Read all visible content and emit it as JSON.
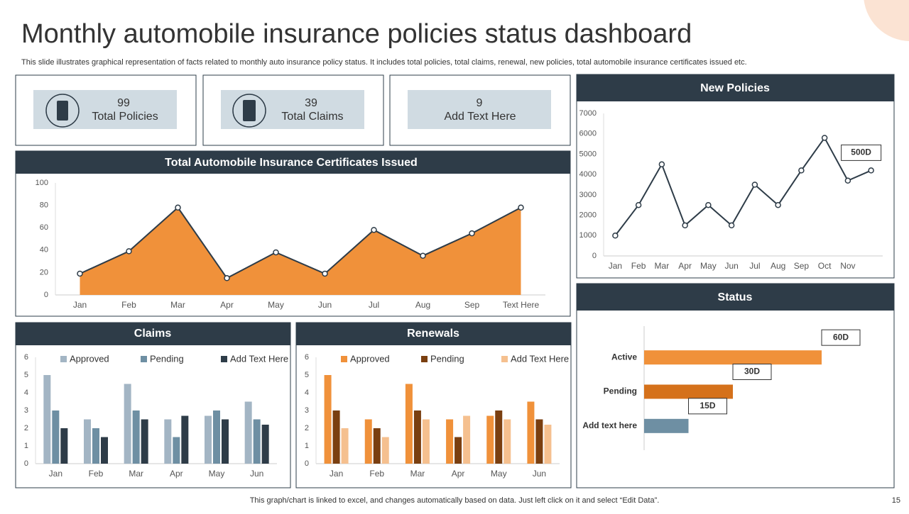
{
  "title": "Monthly automobile insurance policies status dashboard",
  "subtitle": "This slide illustrates graphical representation of facts related to monthly auto insurance policy status. It includes total policies, total claims, renewal, new policies, total automobile insurance certificates issued etc.",
  "kpis": [
    {
      "value": 99,
      "label": "Total Policies"
    },
    {
      "value": 39,
      "label": "Total Claims"
    },
    {
      "value": 9,
      "label": "Add Text Here"
    }
  ],
  "chart_data": [
    {
      "type": "area",
      "title": "Total Automobile Insurance Certificates Issued",
      "categories": [
        "Jan",
        "Feb",
        "Mar",
        "Apr",
        "May",
        "Jun",
        "Jul",
        "Aug",
        "Sep",
        "Text Here"
      ],
      "values": [
        19,
        39,
        78,
        15,
        38,
        19,
        58,
        35,
        55,
        78
      ],
      "color": "#f0913a",
      "line_color": "#2e3c48",
      "ylim": [
        0,
        100
      ],
      "yticks": [
        0,
        20,
        40,
        60,
        80,
        100
      ]
    },
    {
      "type": "line",
      "title": "New Policies",
      "categories": [
        "Jan",
        "Feb",
        "Mar",
        "Apr",
        "May",
        "Jun",
        "Jul",
        "Aug",
        "Sep",
        "Oct",
        "Nov",
        null
      ],
      "values": [
        1000,
        2500,
        4500,
        1500,
        2500,
        1500,
        3500,
        2500,
        4200,
        5800,
        3700,
        4200
      ],
      "color": "#2e3c48",
      "annotation": "500D",
      "ylim": [
        0,
        7000
      ],
      "yticks": [
        0,
        1000,
        2000,
        3000,
        4000,
        5000,
        6000,
        7000
      ]
    },
    {
      "type": "hbar",
      "title": "Status",
      "categories": [
        "Active",
        "Pending",
        "Add text here"
      ],
      "values": [
        60,
        30,
        15
      ],
      "value_labels": [
        "60D",
        "30D",
        "15D"
      ],
      "colors": [
        "#f0913a",
        "#d5711b",
        "#6e8fa3"
      ]
    },
    {
      "type": "grouped_bar",
      "title": "Claims",
      "categories": [
        "Jan",
        "Feb",
        "Mar",
        "Apr",
        "May",
        "Jun"
      ],
      "series": [
        {
          "name": "Approved",
          "color": "#a3b5c4",
          "values": [
            5,
            2.5,
            4.5,
            2.5,
            2.7,
            3.5
          ]
        },
        {
          "name": "Pending",
          "color": "#6e8fa3",
          "values": [
            3,
            2,
            3,
            1.5,
            3,
            2.5
          ]
        },
        {
          "name": "Add Text Here",
          "color": "#2e3c48",
          "values": [
            2,
            1.5,
            2.5,
            2.7,
            2.5,
            2.2
          ]
        }
      ],
      "ylim": [
        0,
        6
      ],
      "yticks": [
        0,
        1,
        2,
        3,
        4,
        5,
        6
      ]
    },
    {
      "type": "grouped_bar",
      "title": "Renewals",
      "categories": [
        "Jan",
        "Feb",
        "Mar",
        "Apr",
        "May",
        "Jun"
      ],
      "series": [
        {
          "name": "Approved",
          "color": "#f0913a",
          "values": [
            5,
            2.5,
            4.5,
            2.5,
            2.7,
            3.5
          ]
        },
        {
          "name": "Pending",
          "color": "#7a3f10",
          "values": [
            3,
            2,
            3,
            1.5,
            3,
            2.5
          ]
        },
        {
          "name": "Add Text Here",
          "color": "#f5c08f",
          "values": [
            2,
            1.5,
            2.5,
            2.7,
            2.5,
            2.2
          ]
        }
      ],
      "ylim": [
        0,
        6
      ],
      "yticks": [
        0,
        1,
        2,
        3,
        4,
        5,
        6
      ]
    }
  ],
  "footer": "This graph/chart is linked to excel, and changes automatically based on data. Just left click on it and select “Edit Data”.",
  "page_number": 15
}
